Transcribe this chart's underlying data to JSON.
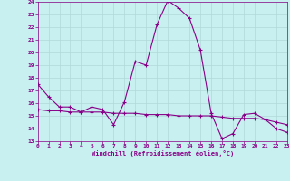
{
  "xlabel": "Windchill (Refroidissement éolien,°C)",
  "bg_color": "#c8f0f0",
  "grid_color": "#b0d8d8",
  "line_color": "#880088",
  "ylim": [
    13,
    24
  ],
  "xlim": [
    0,
    23
  ],
  "yticks": [
    13,
    14,
    15,
    16,
    17,
    18,
    19,
    20,
    21,
    22,
    23,
    24
  ],
  "xticks": [
    0,
    1,
    2,
    3,
    4,
    5,
    6,
    7,
    8,
    9,
    10,
    11,
    12,
    13,
    14,
    15,
    16,
    17,
    18,
    19,
    20,
    21,
    22,
    23
  ],
  "curve1_x": [
    0,
    1,
    2,
    3,
    4,
    5,
    6,
    7,
    8,
    9,
    10,
    11,
    12,
    13,
    14,
    15,
    16,
    17,
    18,
    19,
    20,
    21,
    22,
    23
  ],
  "curve1_y": [
    17.5,
    16.5,
    15.7,
    15.7,
    15.3,
    15.7,
    15.5,
    14.3,
    16.1,
    19.3,
    19.0,
    22.2,
    24.1,
    23.5,
    22.7,
    20.2,
    15.2,
    13.2,
    13.6,
    15.1,
    15.2,
    14.7,
    14.0,
    13.7
  ],
  "curve2_x": [
    0,
    1,
    2,
    3,
    4,
    5,
    6,
    7,
    8,
    9,
    10,
    11,
    12,
    13,
    14,
    15,
    16,
    17,
    18,
    19,
    20,
    21,
    22,
    23
  ],
  "curve2_y": [
    15.5,
    15.4,
    15.4,
    15.3,
    15.3,
    15.3,
    15.3,
    15.2,
    15.2,
    15.2,
    15.1,
    15.1,
    15.1,
    15.0,
    15.0,
    15.0,
    15.0,
    14.9,
    14.8,
    14.8,
    14.8,
    14.7,
    14.5,
    14.3
  ]
}
